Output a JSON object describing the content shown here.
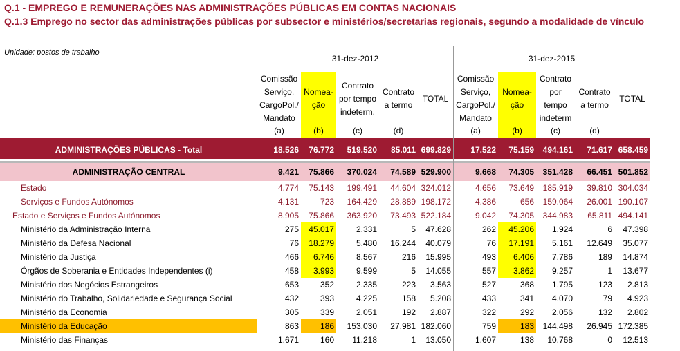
{
  "title": "Q.1 - EMPREGO E REMUNERAÇÕES NAS ADMINISTRAÇÕES PÚBLICAS EM CONTAS NACIONAIS",
  "subtitle": "Q.1.3 Emprego no sector das administrações públicas por subsector e ministérios/secretarias regionais, segundo a modalidade de vínculo",
  "unit": "Unidade: postos de trabalho",
  "periods": [
    "31-dez-2012",
    "31-dez-2015"
  ],
  "columns": [
    {
      "label": "Comissão Serviço, CargoPol./ Mandato",
      "letter": "(a)"
    },
    {
      "label": "Nomea-ção",
      "letter": "(b)"
    },
    {
      "label": "Contrato por tempo indeterm.",
      "letter": "(c)"
    },
    {
      "label": "Contrato a termo",
      "letter": "(d)"
    },
    {
      "label": "TOTAL",
      "letter": ""
    },
    {
      "label": "Comissão Serviço, CargoPol./ Mandato",
      "letter": "(a)"
    },
    {
      "label": "Nomea-ção",
      "letter": "(b)"
    },
    {
      "label": "Contrato por tempo indeterm",
      "letter": "(c)"
    },
    {
      "label": "Contrato a termo",
      "letter": "(d)"
    },
    {
      "label": "TOTAL",
      "letter": ""
    }
  ],
  "rows": [
    {
      "label": "ADMINISTRAÇÕES PÚBLICAS - Total",
      "values": [
        "18.526",
        "76.772",
        "519.520",
        "85.011",
        "699.829",
        "17.522",
        "75.159",
        "494.161",
        "71.617",
        "658.459"
      ]
    },
    {
      "label": "ADMINISTRAÇÃO CENTRAL",
      "values": [
        "9.421",
        "75.866",
        "370.024",
        "74.589",
        "529.900",
        "9.668",
        "74.305",
        "351.428",
        "66.451",
        "501.852"
      ]
    },
    {
      "label": "Estado",
      "values": [
        "4.774",
        "75.143",
        "199.491",
        "44.604",
        "324.012",
        "4.656",
        "73.649",
        "185.919",
        "39.810",
        "304.034"
      ]
    },
    {
      "label": "Serviços e Fundos Autónomos",
      "values": [
        "4.131",
        "723",
        "164.429",
        "28.889",
        "198.172",
        "4.386",
        "656",
        "159.064",
        "26.001",
        "190.107"
      ]
    },
    {
      "label": "Estado e Serviços e Fundos Autónomos",
      "values": [
        "8.905",
        "75.866",
        "363.920",
        "73.493",
        "522.184",
        "9.042",
        "74.305",
        "344.983",
        "65.811",
        "494.141"
      ]
    },
    {
      "label": "Ministério da Administração Interna",
      "values": [
        "275",
        "45.017",
        "2.331",
        "5",
        "47.628",
        "262",
        "45.206",
        "1.924",
        "6",
        "47.398"
      ]
    },
    {
      "label": "Ministério da Defesa Nacional",
      "values": [
        "76",
        "18.279",
        "5.480",
        "16.244",
        "40.079",
        "76",
        "17.191",
        "5.161",
        "12.649",
        "35.077"
      ]
    },
    {
      "label": "Ministério da Justiça",
      "values": [
        "466",
        "6.746",
        "8.567",
        "216",
        "15.995",
        "493",
        "6.406",
        "7.786",
        "189",
        "14.874"
      ]
    },
    {
      "label": "Órgãos de Soberania e Entidades Independentes (i)",
      "values": [
        "458",
        "3.993",
        "9.599",
        "5",
        "14.055",
        "557",
        "3.862",
        "9.257",
        "1",
        "13.677"
      ]
    },
    {
      "label": "Ministério dos Negócios Estrangeiros",
      "values": [
        "653",
        "352",
        "2.335",
        "223",
        "3.563",
        "527",
        "368",
        "1.795",
        "123",
        "2.813"
      ]
    },
    {
      "label": "Ministério do Trabalho, Solidariedade e Segurança Social",
      "values": [
        "432",
        "393",
        "4.225",
        "158",
        "5.208",
        "433",
        "341",
        "4.070",
        "79",
        "4.923"
      ]
    },
    {
      "label": "Ministério da Economia",
      "values": [
        "305",
        "339",
        "2.051",
        "192",
        "2.887",
        "322",
        "292",
        "2.056",
        "132",
        "2.802"
      ]
    },
    {
      "label": "Ministério da Educação",
      "values": [
        "863",
        "186",
        "153.030",
        "27.981",
        "182.060",
        "759",
        "183",
        "144.498",
        "26.945",
        "172.385"
      ]
    },
    {
      "label": "Ministério das Finanças",
      "values": [
        "1.671",
        "160",
        "11.218",
        "1",
        "13.050",
        "1.607",
        "138",
        "10.768",
        "0",
        "12.513"
      ]
    }
  ]
}
